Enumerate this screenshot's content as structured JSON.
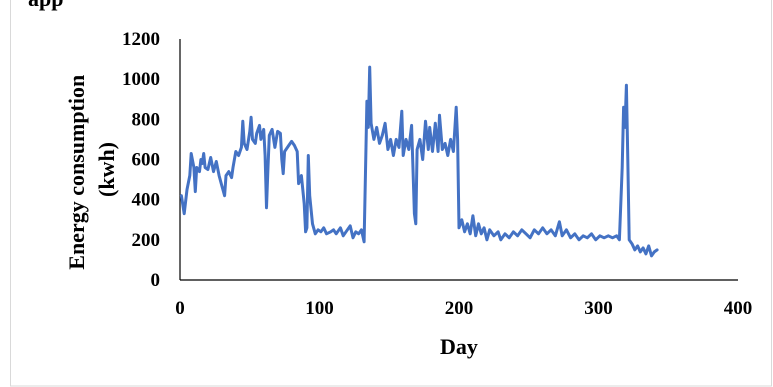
{
  "colors": {
    "series": "#4472c4",
    "axis": "#000000",
    "frame": "#d9d9d9"
  },
  "top_fragment": "app",
  "chart_data": {
    "type": "line",
    "title": "",
    "xlabel": "Day",
    "ylabel_lines": [
      "Energy consumption",
      "(kwh)"
    ],
    "xlim": [
      0,
      400
    ],
    "ylim": [
      0,
      1200
    ],
    "x_ticks": [
      0,
      100,
      200,
      300,
      400
    ],
    "y_ticks": [
      0,
      200,
      400,
      600,
      800,
      1000,
      1200
    ],
    "grid": false,
    "legend": "none",
    "series": [
      {
        "points": [
          [
            1,
            420
          ],
          [
            3,
            330
          ],
          [
            5,
            450
          ],
          [
            7,
            520
          ],
          [
            8,
            630
          ],
          [
            10,
            560
          ],
          [
            11,
            440
          ],
          [
            12,
            560
          ],
          [
            14,
            540
          ],
          [
            15,
            600
          ],
          [
            16,
            580
          ],
          [
            17,
            630
          ],
          [
            18,
            560
          ],
          [
            20,
            550
          ],
          [
            22,
            610
          ],
          [
            24,
            540
          ],
          [
            26,
            590
          ],
          [
            28,
            520
          ],
          [
            30,
            470
          ],
          [
            32,
            420
          ],
          [
            33,
            520
          ],
          [
            35,
            540
          ],
          [
            37,
            510
          ],
          [
            38,
            560
          ],
          [
            40,
            640
          ],
          [
            42,
            620
          ],
          [
            44,
            660
          ],
          [
            45,
            790
          ],
          [
            46,
            680
          ],
          [
            48,
            650
          ],
          [
            50,
            740
          ],
          [
            51,
            810
          ],
          [
            52,
            700
          ],
          [
            54,
            680
          ],
          [
            55,
            730
          ],
          [
            57,
            770
          ],
          [
            58,
            700
          ],
          [
            60,
            750
          ],
          [
            61,
            620
          ],
          [
            62,
            360
          ],
          [
            63,
            550
          ],
          [
            64,
            720
          ],
          [
            66,
            750
          ],
          [
            68,
            660
          ],
          [
            70,
            740
          ],
          [
            72,
            730
          ],
          [
            73,
            600
          ],
          [
            74,
            530
          ],
          [
            75,
            640
          ],
          [
            76,
            650
          ],
          [
            78,
            670
          ],
          [
            80,
            690
          ],
          [
            82,
            670
          ],
          [
            84,
            640
          ],
          [
            85,
            480
          ],
          [
            87,
            520
          ],
          [
            89,
            380
          ],
          [
            90,
            240
          ],
          [
            91,
            260
          ],
          [
            92,
            620
          ],
          [
            93,
            420
          ],
          [
            95,
            280
          ],
          [
            97,
            230
          ],
          [
            99,
            250
          ],
          [
            101,
            240
          ],
          [
            103,
            260
          ],
          [
            105,
            230
          ],
          [
            108,
            240
          ],
          [
            110,
            250
          ],
          [
            112,
            230
          ],
          [
            115,
            260
          ],
          [
            117,
            220
          ],
          [
            120,
            250
          ],
          [
            122,
            270
          ],
          [
            124,
            210
          ],
          [
            126,
            240
          ],
          [
            128,
            230
          ],
          [
            130,
            250
          ],
          [
            132,
            190
          ],
          [
            134,
            890
          ],
          [
            135,
            760
          ],
          [
            136,
            1060
          ],
          [
            137,
            780
          ],
          [
            139,
            700
          ],
          [
            141,
            760
          ],
          [
            143,
            680
          ],
          [
            145,
            720
          ],
          [
            147,
            780
          ],
          [
            149,
            650
          ],
          [
            151,
            700
          ],
          [
            153,
            620
          ],
          [
            155,
            700
          ],
          [
            157,
            660
          ],
          [
            159,
            840
          ],
          [
            160,
            620
          ],
          [
            162,
            700
          ],
          [
            164,
            650
          ],
          [
            166,
            770
          ],
          [
            168,
            330
          ],
          [
            169,
            280
          ],
          [
            170,
            650
          ],
          [
            172,
            700
          ],
          [
            174,
            600
          ],
          [
            176,
            790
          ],
          [
            178,
            650
          ],
          [
            179,
            760
          ],
          [
            181,
            640
          ],
          [
            183,
            780
          ],
          [
            185,
            640
          ],
          [
            186,
            820
          ],
          [
            188,
            650
          ],
          [
            190,
            680
          ],
          [
            192,
            620
          ],
          [
            194,
            700
          ],
          [
            196,
            640
          ],
          [
            198,
            860
          ],
          [
            199,
            700
          ],
          [
            200,
            260
          ],
          [
            202,
            300
          ],
          [
            204,
            240
          ],
          [
            206,
            280
          ],
          [
            208,
            230
          ],
          [
            210,
            320
          ],
          [
            212,
            220
          ],
          [
            214,
            280
          ],
          [
            216,
            230
          ],
          [
            218,
            260
          ],
          [
            220,
            200
          ],
          [
            222,
            250
          ],
          [
            225,
            220
          ],
          [
            228,
            240
          ],
          [
            230,
            200
          ],
          [
            233,
            230
          ],
          [
            236,
            210
          ],
          [
            239,
            240
          ],
          [
            242,
            220
          ],
          [
            245,
            250
          ],
          [
            248,
            230
          ],
          [
            251,
            210
          ],
          [
            254,
            250
          ],
          [
            257,
            230
          ],
          [
            260,
            260
          ],
          [
            263,
            230
          ],
          [
            266,
            250
          ],
          [
            269,
            220
          ],
          [
            272,
            290
          ],
          [
            274,
            220
          ],
          [
            277,
            250
          ],
          [
            280,
            210
          ],
          [
            283,
            230
          ],
          [
            286,
            200
          ],
          [
            289,
            220
          ],
          [
            292,
            210
          ],
          [
            295,
            230
          ],
          [
            298,
            200
          ],
          [
            301,
            220
          ],
          [
            304,
            210
          ],
          [
            307,
            220
          ],
          [
            310,
            210
          ],
          [
            313,
            220
          ],
          [
            315,
            200
          ],
          [
            317,
            560
          ],
          [
            318,
            860
          ],
          [
            319,
            760
          ],
          [
            320,
            970
          ],
          [
            321,
            600
          ],
          [
            322,
            200
          ],
          [
            324,
            180
          ],
          [
            326,
            150
          ],
          [
            328,
            170
          ],
          [
            330,
            140
          ],
          [
            332,
            160
          ],
          [
            334,
            130
          ],
          [
            336,
            170
          ],
          [
            338,
            120
          ],
          [
            340,
            140
          ],
          [
            342,
            150
          ]
        ]
      }
    ]
  }
}
